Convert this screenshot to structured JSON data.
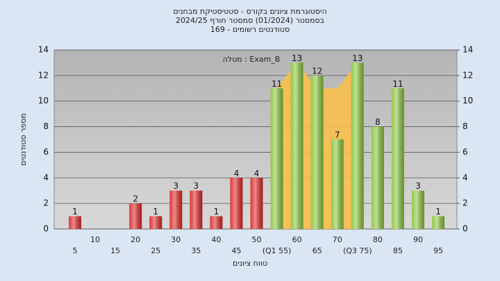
{
  "chart_data": {
    "type": "bar",
    "title": [
      "היסטוגרמת ציונים בקורס - סטטיסטיקת מבחנים",
      "בסמסטר (01/2024) סמסטר חורף 2024/25",
      "סטודנטים רשומים - 169"
    ],
    "annotation": "מטלה : Exam_B",
    "y_label": "מספר סטודנטים",
    "x_label": "טווח ציונים",
    "categories": [
      "5",
      "10",
      "15",
      "20",
      "25",
      "30",
      "35",
      "40",
      "45",
      "50",
      "(Q1 55)",
      "60",
      "65",
      "70",
      "(Q3 75)",
      "80",
      "85",
      "90",
      "95"
    ],
    "values": [
      1,
      0,
      0,
      2,
      1,
      3,
      3,
      1,
      4,
      4,
      11,
      13,
      12,
      7,
      13,
      8,
      11,
      3,
      1
    ],
    "bar_colors": [
      "#e02a2a",
      "#e02a2a",
      "#e02a2a",
      "#e02a2a",
      "#e02a2a",
      "#e02a2a",
      "#e02a2a",
      "#e02a2a",
      "#e02a2a",
      "#e02a2a",
      "#8dc63f",
      "#8dc63f",
      "#8dc63f",
      "#8dc63f",
      "#8dc63f",
      "#8dc63f",
      "#8dc63f",
      "#8dc63f",
      "#8dc63f"
    ],
    "area": {
      "color": "#f7c04a",
      "values": [
        null,
        null,
        null,
        null,
        null,
        null,
        null,
        null,
        null,
        null,
        11,
        13,
        11,
        11,
        13,
        null,
        null,
        null,
        null
      ]
    },
    "ylim": [
      0,
      14
    ],
    "yticks": [
      0,
      2,
      4,
      6,
      8,
      10,
      12,
      14
    ],
    "y2lim": [
      0,
      14
    ],
    "y2ticks": [
      0,
      2,
      4,
      6,
      8,
      10,
      12,
      14
    ],
    "grid": true
  }
}
